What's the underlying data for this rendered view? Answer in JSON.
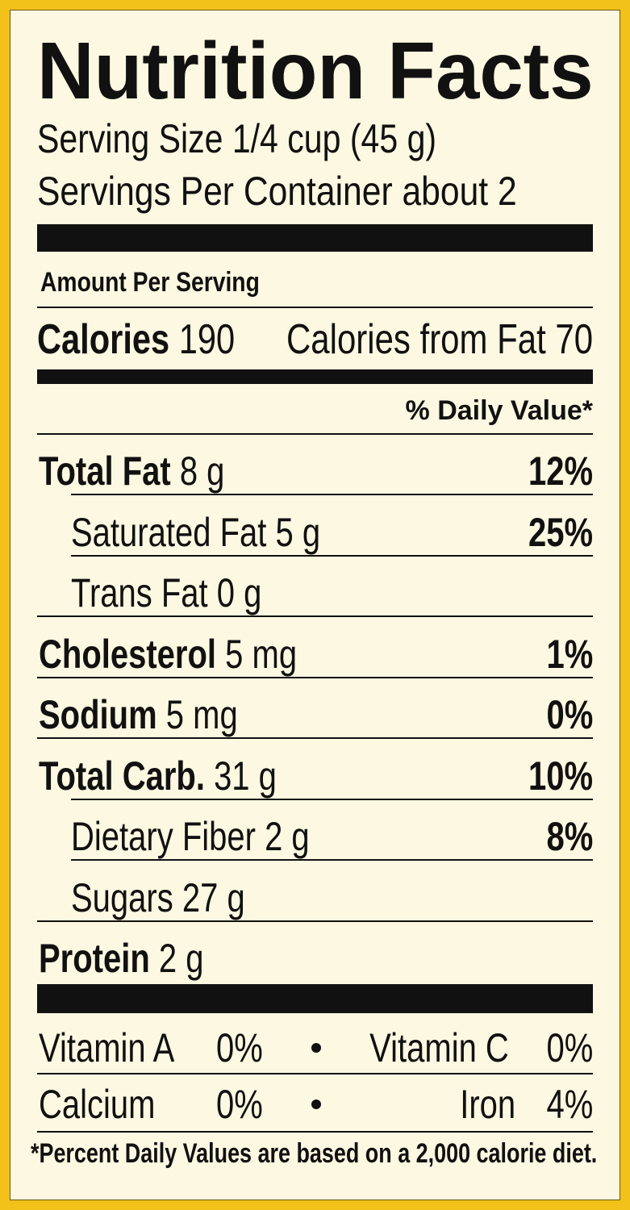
{
  "header": {
    "title": "Nutrition Facts",
    "serving_size": "Serving Size 1/4 cup (45 g)",
    "servings_per_container": "Servings Per Container about 2"
  },
  "amount_per_serving": "Amount Per Serving",
  "calories": {
    "label": "Calories",
    "value": "190",
    "from_fat": "Calories from Fat 70"
  },
  "daily_value_header": "% Daily Value*",
  "nutrients": [
    {
      "name": "Total Fat",
      "amount": "8 g",
      "daily_value": "12%"
    },
    {
      "name": "Saturated Fat",
      "amount": "5 g",
      "daily_value": "25%"
    },
    {
      "name": "Trans Fat",
      "amount": "0 g"
    },
    {
      "name": "Cholesterol",
      "amount": "5 mg",
      "daily_value": "1%"
    },
    {
      "name": "Sodium",
      "amount": "5 mg",
      "daily_value": "0%"
    },
    {
      "name": "Total Carb.",
      "amount": "31 g",
      "daily_value": "10%"
    },
    {
      "name": "Dietary Fiber",
      "amount": "2 g",
      "daily_value": "8%"
    },
    {
      "name": "Sugars",
      "amount": "27 g"
    },
    {
      "name": "Protein",
      "amount": "2 g"
    }
  ],
  "vitamins": [
    [
      {
        "name": "Vitamin A",
        "value": "0%"
      },
      {
        "name": "Vitamin C",
        "value": "0%"
      }
    ],
    [
      {
        "name": "Calcium",
        "value": "0%"
      },
      {
        "name": "Iron",
        "value": "4%"
      }
    ]
  ],
  "footnote": "*Percent Daily Values are based on a 2,000 calorie diet."
}
